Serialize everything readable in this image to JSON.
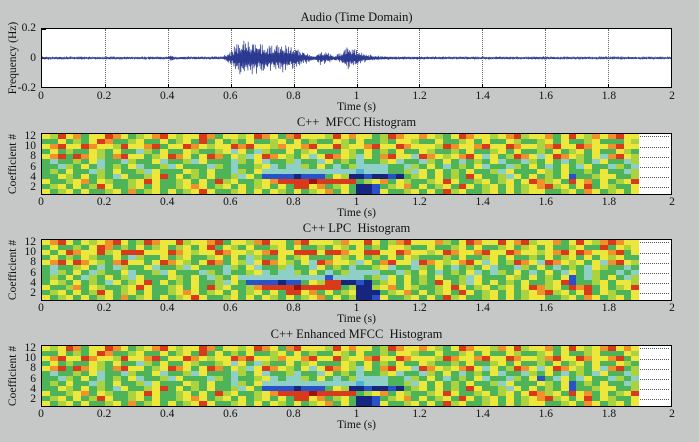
{
  "figure": {
    "bg": "#c6c8c7",
    "frame_color": "#000000",
    "grid_dot_color": "#666666"
  },
  "palette": {
    "R": "#a01208",
    "r": "#d93a1c",
    "o": "#f0912c",
    "y": "#ece73a",
    "l": "#abd23f",
    "g": "#4db45a",
    "c": "#8ecfc8",
    "d": "#4fb0d8",
    "b": "#2a52c8",
    "B": "#16257e"
  },
  "chart_data": [
    {
      "type": "line",
      "title": "Audio (Time Domain)",
      "xlabel": "Time (s)",
      "ylabel": "Frequency (Hz)",
      "xlim": [
        0,
        2
      ],
      "ylim": [
        -0.2,
        0.2
      ],
      "xticks": [
        "0",
        "0.2",
        "0.4",
        "0.6",
        "0.8",
        "1",
        "1.2",
        "1.4",
        "1.6",
        "1.8",
        "2"
      ],
      "yticks": [
        "0.2",
        "0",
        "-0.2"
      ],
      "grid": true,
      "legend": false,
      "line_color": "#2b3990",
      "seed": 11,
      "samples": 1900,
      "envelope_t_amp": [
        [
          0,
          0.008
        ],
        [
          0.4,
          0.008
        ],
        [
          0.41,
          0.03
        ],
        [
          0.42,
          0.009
        ],
        [
          0.57,
          0.009
        ],
        [
          0.6,
          0.05
        ],
        [
          0.625,
          0.13
        ],
        [
          0.67,
          0.12
        ],
        [
          0.71,
          0.095
        ],
        [
          0.77,
          0.1
        ],
        [
          0.81,
          0.07
        ],
        [
          0.845,
          0.035
        ],
        [
          0.862,
          0.015
        ],
        [
          0.882,
          0.05
        ],
        [
          0.905,
          0.042
        ],
        [
          0.925,
          0.018
        ],
        [
          0.95,
          0.04
        ],
        [
          0.965,
          0.09
        ],
        [
          0.99,
          0.07
        ],
        [
          1.01,
          0.045
        ],
        [
          1.05,
          0.02
        ],
        [
          1.1,
          0.01
        ],
        [
          1.25,
          0.008
        ],
        [
          2,
          0.007
        ]
      ]
    },
    {
      "type": "heatmap",
      "title": "C++  MFCC Histogram",
      "xlabel": "Time (s)",
      "ylabel": "Coefficient #",
      "xlim": [
        0,
        2
      ],
      "ylim": [
        1,
        12
      ],
      "data_tmax": 1.9,
      "xticks": [
        "0",
        "0.2",
        "0.4",
        "0.6",
        "0.8",
        "1",
        "1.2",
        "1.4",
        "1.6",
        "1.8",
        "2"
      ],
      "yticks": [
        "12",
        "10",
        "8",
        "6",
        "4",
        "2"
      ],
      "grid": true,
      "rows_top_to_bottom": [
        "ylryogyyroyglyorylyyrogyylyroygoryyylryoyyglroyyoylgyroyylyorlyyogyryloyoryy",
        "ggyglgyrogglyggyglygrgyglgygglygyglggylgygglgyylggygglygyggylgglygygglygggyl",
        "yoryyroyylryyorgyyroylyyroryyloyyoryyrlyyoryyroyyylroyyoryyroyyloryyroyyoryy",
        "gyglggylgyggclgyggylgglycygclggyglygggylgyglgyggylgglgygglygygglgyglygyggylg",
        "yorgroylgoryyglyroygyrogylcyroylgycyroylcygoryycroylyorycyglroycyroylgycoryl",
        "gcgglgycggclggycgglcygggclgycgglcggcyglgcgglycggclgygcglgycggclgygcglgcyggcl",
        "ggclgygcglgycgglcygggclgcgglycgcclgygcglccccggclgygcglgycggclgygcgygcyggclgc",
        "glgyggclgygglcygggylgyggclgyccccccccccccdcccgglcygyglgygglcygggylgygglgyggcl",
        "ggylgyglgcygglyrgyglgygglcygbbbbBbbbgylBBbBBbBglygyglgrygglcygyglgybgglyyggl",
        "ygglyogylgglyrygglygygrlygglyorrrrRrrrrrglyogylgglyrygglyglygyrolygryogyglyr",
        "glygyglrygglygygglyoyglygyglygygrryoglygBBbglyogyglygryglygyglyorlygyrgylggy",
        "yglygygglygoglygyglyrygglygygylgyglyogygBBbygglygygrlygglygyglyygglygoyglygy"
      ]
    },
    {
      "type": "heatmap",
      "title": "C++ LPC  Histogram",
      "xlabel": "Time (s)",
      "ylabel": "Coefficient #",
      "xlim": [
        0,
        2
      ],
      "ylim": [
        1,
        12
      ],
      "data_tmax": 1.9,
      "xticks": [
        "0",
        "0.2",
        "0.4",
        "0.6",
        "0.8",
        "1",
        "1.2",
        "1.4",
        "1.6",
        "1.8",
        "2"
      ],
      "yticks": [
        "12",
        "10",
        "8",
        "6",
        "4",
        "2"
      ],
      "grid": true,
      "rows_top_to_bottom": [
        "yorygylyoryglroyyrlyyorgyyloryygoryyyloyyrygloryyyolgyroyyryorlyyogyryloroyy",
        "gygglgyroglgyglyglygyrgylgygglygygglgylgyglgyylggygglygygglyglygygglyggrgyly",
        "ygyroyyrlyrrryyyroylyyroyylyoryyrrryrroyyrryyroyylyroyyoryyroyylyoryroyyorgy",
        "gyglgylggygclggyglygglygygclggyglygggylgyglgygylggglgygglygygglgyglygygylygg",
        "yoryroylgoryygyroylgyrogylcyroylgycroyylcygoryycroylyorycyglroycroylygycoryl",
        "gcgglygcgclggycgglcygggclgycgglcggcyglgcgglycggclgygcglgycggclgygcglgcylggcg",
        "gclgygclggycgglcygggclgcgglycgcclgygcglccccggclgygcglgycgclgygcgygcygclggcgc",
        "glgygclgyglcygggylgygclgycccccccccccbccccglcygyglgygglcygggylgyglgybgclgygcl",
        "gylgyglgcyglyrgyglgygglcygbbbbBbbgylrrBBbBglygyglgryglcygyglgygglyrbgglygyyl",
        "ygglogylgglyrygglygygrlygglorrrrRrrrrrglBBlyogylgglyryglyglygyrolygrorgyglyr",
        "glygyglryglygygglyoyglygyglygygrryogyglyBBBglyogyglygryglygyglyorlygyrgylggy",
        "yglygyglygoglygyglyrygglygygylgyglyogyglBBbygglygygrlygglygyglyygglygoyglygy"
      ]
    },
    {
      "type": "heatmap",
      "title": "C++ Enhanced MFCC  Histogram",
      "xlabel": "Time (s)",
      "ylabel": "Coefficient #",
      "xlim": [
        0,
        2
      ],
      "ylim": [
        1,
        12
      ],
      "data_tmax": 1.9,
      "xticks": [
        "0",
        "0.2",
        "0.4",
        "0.6",
        "0.8",
        "1",
        "1.2",
        "1.4",
        "1.6",
        "1.8",
        "2"
      ],
      "yticks": [
        "12",
        "10",
        "8",
        "6",
        "4",
        "2"
      ],
      "grid": true,
      "rows_top_to_bottom": [
        "ylyrogyyroyglyorylyyrogyylyroygoryyylryoyyglroyyoylgyroyyloyrlyyogyrylyoryoy",
        "ggyglgyrogglyggyglygrgyglgygglygyglggylgygglgyylggygglygyggylgglygygglygggyl",
        "yoryyroyylryyorgyyroylyyroryyloyyoryyrlyyoryyroyyylroyyoryyroyyloryyroyyorgy",
        "gyglggylgyggclgyggylgglycygclggyglygggylgyglgyggylgglgygglygygglgyglygyggylg",
        "yorgroylgoryyglyroygyrogylcyroylgycyroylcygoryycroylyorycyglroycyroylgycorgl",
        "gcgglgycggclggycgglcygggclgycgglcggcyglgcgglycggclgygcglgycggclgygcglgcyggcl",
        "ggclgygcglgycgglcygggclgcgglycgcclgygcglccccggclgygcglgycggclgybgcygcyggclgc",
        "glgyggclgygglcygggylgyggclgyccccccccccccdcccgglcygyglgygglcygggylgybglgyggcl",
        "ggylgyglgcygglyrgyglgygglcygbbbbBbbbgylBBbBBbBglygyglgrygglcygyglgybgglyyggl",
        "ygglyogylgglyrygglygygrlygglyorrrrRrrrrrglyogylgglyrygglyglygyrolygryogyglyr",
        "glygyglrygglygygglyoyglygyglygygrryoglygBBbglyogyglygryglygyglyorlygyrgylggy",
        "yglygygglygoglygyglyrygglygygylgyglyogygBBbygglygygrlygglygyglyygglygoyglygy"
      ]
    }
  ]
}
